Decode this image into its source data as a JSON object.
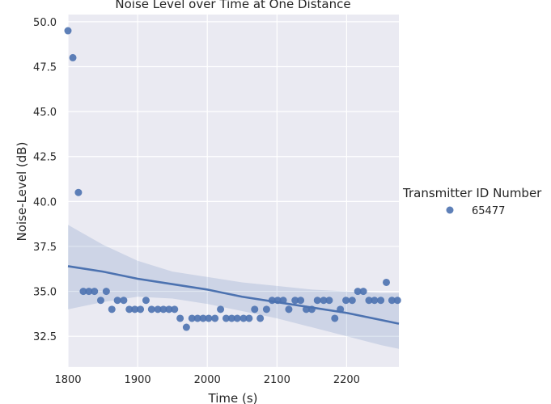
{
  "chart_data": {
    "type": "scatter",
    "title": "Noise Level over Time at One Distance",
    "xlabel": "Time (s)",
    "ylabel": "Noise-Level (dB)",
    "xlim": [
      1800,
      2275
    ],
    "ylim": [
      30.8,
      50.4
    ],
    "xticks": [
      "1800",
      "1900",
      "2000",
      "2100",
      "2200"
    ],
    "yticks": [
      "32.5",
      "35.0",
      "37.5",
      "40.0",
      "42.5",
      "45.0",
      "47.5",
      "50.0"
    ],
    "grid": true,
    "legend": {
      "title": "Transmitter ID Number",
      "placement": "right",
      "entries": [
        "65477"
      ]
    },
    "colors": {
      "point": "#4c72b0",
      "line": "#4c72b0",
      "band": "#4c72b0",
      "background": "#eaeaf2",
      "grid": "#ffffff"
    },
    "series": [
      {
        "name": "65477",
        "x": [
          1800,
          1807,
          1815,
          1822,
          1830,
          1838,
          1847,
          1855,
          1863,
          1871,
          1880,
          1888,
          1896,
          1904,
          1912,
          1920,
          1929,
          1937,
          1945,
          1953,
          1961,
          1970,
          1978,
          1986,
          1994,
          2002,
          2011,
          2019,
          2027,
          2035,
          2043,
          2052,
          2060,
          2068,
          2076,
          2085,
          2093,
          2101,
          2109,
          2117,
          2126,
          2134,
          2142,
          2150,
          2158,
          2167,
          2175,
          2183,
          2191,
          2199,
          2208,
          2216,
          2224,
          2232,
          2240,
          2249,
          2257,
          2265,
          2273
        ],
        "y": [
          49.5,
          48.0,
          40.5,
          35.0,
          35.0,
          35.0,
          34.5,
          35.0,
          34.0,
          34.5,
          34.5,
          34.0,
          34.0,
          34.0,
          34.5,
          34.0,
          34.0,
          34.0,
          34.0,
          34.0,
          33.5,
          33.0,
          33.5,
          33.5,
          33.5,
          33.5,
          33.5,
          34.0,
          33.5,
          33.5,
          33.5,
          33.5,
          33.5,
          34.0,
          33.5,
          34.0,
          34.5,
          34.5,
          34.5,
          34.0,
          34.5,
          34.5,
          34.0,
          34.0,
          34.5,
          34.5,
          34.5,
          33.5,
          34.0,
          34.5,
          34.5,
          35.0,
          35.0,
          34.5,
          34.5,
          34.5,
          35.5,
          34.5,
          34.5
        ]
      }
    ],
    "regression": {
      "x": [
        1800,
        1850,
        1900,
        1950,
        2000,
        2050,
        2100,
        2150,
        2200,
        2250,
        2275
      ],
      "y": [
        36.4,
        36.1,
        35.7,
        35.4,
        35.1,
        34.7,
        34.4,
        34.1,
        33.8,
        33.4,
        33.2
      ],
      "ci_upper": [
        38.7,
        37.6,
        36.7,
        36.1,
        35.8,
        35.5,
        35.3,
        35.1,
        35.0,
        34.9,
        34.9
      ],
      "ci_lower": [
        34.0,
        34.4,
        34.7,
        34.6,
        34.3,
        33.9,
        33.5,
        33.0,
        32.5,
        32.0,
        31.8
      ]
    }
  }
}
